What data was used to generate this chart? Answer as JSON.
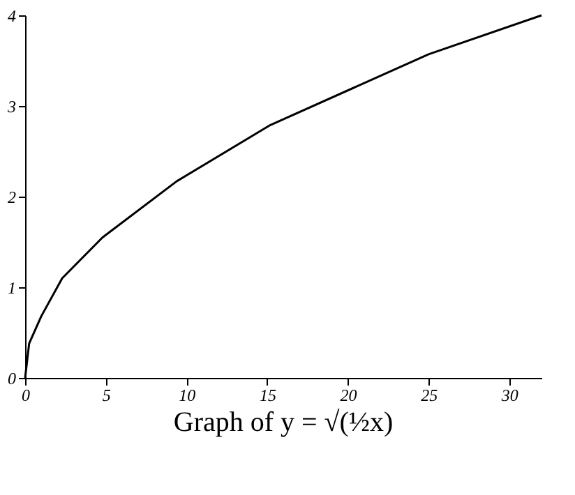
{
  "chart_data": {
    "type": "line",
    "title": "Graph of y = √(½x)",
    "x": [
      0,
      0.25,
      1,
      2.3,
      4.8,
      9.4,
      15.2,
      25,
      32
    ],
    "series": [
      {
        "color": "#000000",
        "values": [
          0,
          0.38,
          0.68,
          1.1,
          1.55,
          2.17,
          2.79,
          3.57,
          4
        ]
      }
    ],
    "xlim": [
      0,
      32
    ],
    "ylim": [
      0,
      4
    ],
    "xticks": [
      0,
      5,
      10,
      15,
      20,
      25,
      30
    ],
    "yticks": [
      0,
      1,
      2,
      3,
      4
    ],
    "grid": false,
    "marker": "none",
    "line_style": "solid"
  }
}
